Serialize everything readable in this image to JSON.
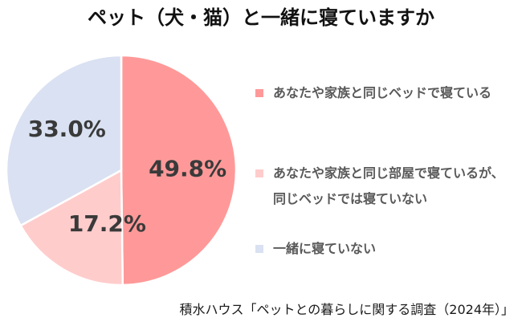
{
  "chart_data": {
    "type": "pie",
    "title": "ペット（犬・猫）と一緒に寝ていますか",
    "slices": [
      {
        "label": "あなたや家族と同じベッドで寝ている",
        "value": 49.8,
        "value_label": "49.8%",
        "color": "#FF9999"
      },
      {
        "label": "あなたや家族と同じ部屋で寝ているが、同じベッドでは寝ていない",
        "value": 17.2,
        "value_label": "17.2%",
        "color": "#FFCCCC"
      },
      {
        "label": "一緒に寝ていない",
        "value": 33.0,
        "value_label": "33.0%",
        "color": "#D9E1F2"
      }
    ],
    "legend_position": "right",
    "source": "積水ハウス「ペットとの暮らしに関する調査（2024年）」"
  }
}
